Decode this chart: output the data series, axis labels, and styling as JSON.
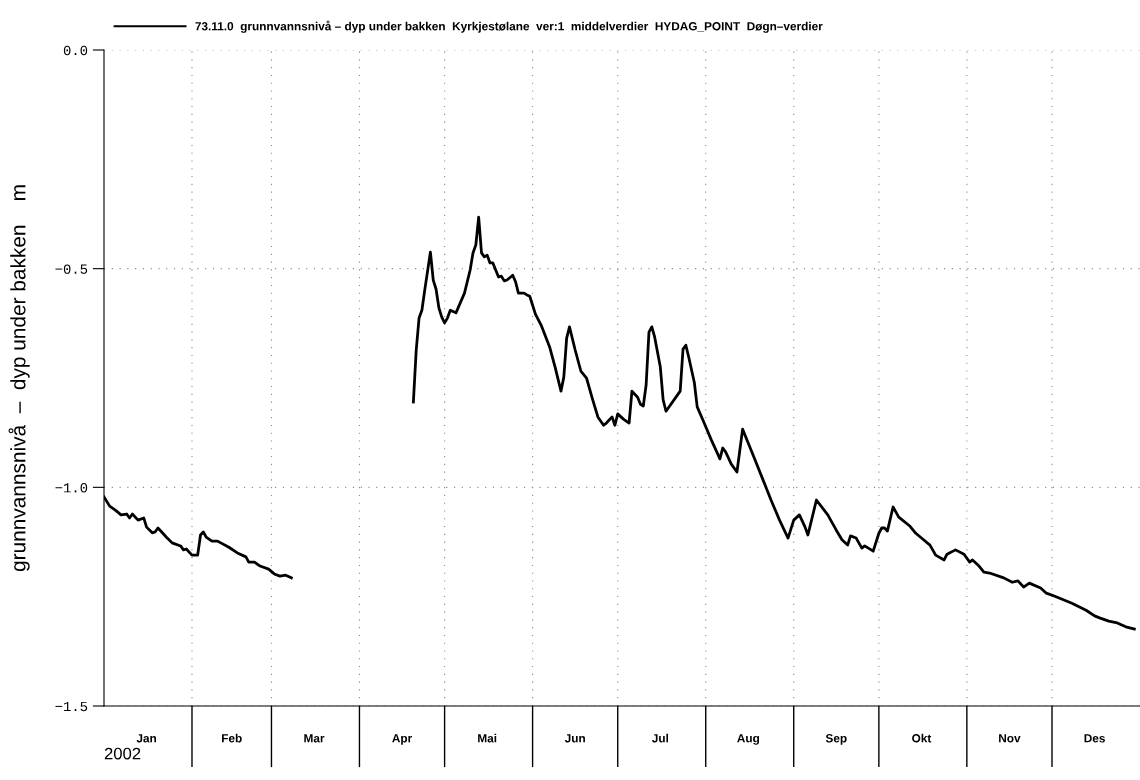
{
  "chart_data": {
    "type": "line",
    "series": [
      {
        "name": "73.11.0  grunnvannsnivå – dyp under bakken  Kyrkjestølane  ver:1  middelverdier  HYDAG_POINT  Døgn–verdier",
        "color": "#000000",
        "x": [
          "2002-01-01",
          "2002-01-03",
          "2002-01-05",
          "2002-01-07",
          "2002-01-09",
          "2002-01-10",
          "2002-01-11",
          "2002-01-13",
          "2002-01-15",
          "2002-01-16",
          "2002-01-18",
          "2002-01-19",
          "2002-01-20",
          "2002-01-21",
          "2002-01-23",
          "2002-01-25",
          "2002-01-28",
          "2002-01-29",
          "2002-01-30",
          "2002-02-01",
          "2002-02-03",
          "2002-02-04",
          "2002-02-05",
          "2002-02-06",
          "2002-02-08",
          "2002-02-10",
          "2002-02-14",
          "2002-02-17",
          "2002-02-20",
          "2002-02-21",
          "2002-02-23",
          "2002-02-25",
          "2002-02-28",
          "2002-03-02",
          "2002-03-04",
          "2002-03-06",
          "2002-03-08",
          "2002-03-20",
          "2002-04-20",
          "2002-04-21",
          "2002-04-22",
          "2002-04-23",
          "2002-04-24",
          "2002-04-26",
          "2002-04-27",
          "2002-04-28",
          "2002-04-29",
          "2002-04-30",
          "2002-05-01",
          "2002-05-02",
          "2002-05-03",
          "2002-05-05",
          "2002-05-08",
          "2002-05-10",
          "2002-05-11",
          "2002-05-12",
          "2002-05-13",
          "2002-05-14",
          "2002-05-15",
          "2002-05-16",
          "2002-05-17",
          "2002-05-18",
          "2002-05-20",
          "2002-05-21",
          "2002-05-22",
          "2002-05-23",
          "2002-05-25",
          "2002-05-26",
          "2002-05-27",
          "2002-05-29",
          "2002-05-30",
          "2002-05-31",
          "2002-06-02",
          "2002-06-04",
          "2002-06-07",
          "2002-06-09",
          "2002-06-11",
          "2002-06-12",
          "2002-06-13",
          "2002-06-14",
          "2002-06-16",
          "2002-06-18",
          "2002-06-20",
          "2002-06-22",
          "2002-06-24",
          "2002-06-26",
          "2002-06-27",
          "2002-06-29",
          "2002-06-30",
          "2002-07-01",
          "2002-07-03",
          "2002-07-05",
          "2002-07-06",
          "2002-07-08",
          "2002-07-09",
          "2002-07-10",
          "2002-07-11",
          "2002-07-12",
          "2002-07-13",
          "2002-07-14",
          "2002-07-16",
          "2002-07-17",
          "2002-07-18",
          "2002-07-23",
          "2002-07-24",
          "2002-07-25",
          "2002-07-26",
          "2002-07-28",
          "2002-07-29",
          "2002-07-31",
          "2002-08-03",
          "2002-08-06",
          "2002-08-07",
          "2002-08-08",
          "2002-08-10",
          "2002-08-12",
          "2002-08-14",
          "2002-08-18",
          "2002-08-24",
          "2002-08-27",
          "2002-08-30",
          "2002-09-01",
          "2002-09-03",
          "2002-09-05",
          "2002-09-06",
          "2002-09-09",
          "2002-09-13",
          "2002-09-16",
          "2002-09-18",
          "2002-09-20",
          "2002-09-21",
          "2002-09-23",
          "2002-09-25",
          "2002-09-26",
          "2002-09-29",
          "2002-10-01",
          "2002-10-02",
          "2002-10-03",
          "2002-10-04",
          "2002-10-06",
          "2002-10-08",
          "2002-10-12",
          "2002-10-14",
          "2002-10-16",
          "2002-10-19",
          "2002-10-21",
          "2002-10-24",
          "2002-10-25",
          "2002-10-28",
          "2002-10-31",
          "2002-11-02",
          "2002-11-03",
          "2002-11-05",
          "2002-11-07",
          "2002-11-09",
          "2002-11-14",
          "2002-11-17",
          "2002-11-19",
          "2002-11-21",
          "2002-11-23",
          "2002-11-27",
          "2002-11-29",
          "2002-12-02",
          "2002-12-08",
          "2002-12-13",
          "2002-12-16",
          "2002-12-18",
          "2002-12-21",
          "2002-12-24",
          "2002-12-27",
          "2002-12-30"
        ],
        "values": [
          -1.022,
          -1.043,
          -1.052,
          -1.063,
          -1.061,
          -1.07,
          -1.061,
          -1.075,
          -1.07,
          -1.091,
          -1.104,
          -1.102,
          -1.093,
          -1.1,
          -1.114,
          -1.127,
          -1.134,
          -1.143,
          -1.141,
          -1.155,
          -1.155,
          -1.109,
          -1.102,
          -1.114,
          -1.123,
          -1.123,
          -1.137,
          -1.15,
          -1.159,
          -1.171,
          -1.171,
          -1.18,
          -1.187,
          -1.198,
          -1.203,
          -1.201,
          -1.207,
          null,
          -0.805,
          -0.686,
          -0.613,
          -0.595,
          -0.549,
          -0.462,
          -0.526,
          -0.547,
          -0.59,
          -0.611,
          -0.624,
          -0.613,
          -0.595,
          -0.601,
          -0.556,
          -0.503,
          -0.464,
          -0.446,
          -0.382,
          -0.464,
          -0.473,
          -0.469,
          -0.487,
          -0.487,
          -0.519,
          -0.517,
          -0.528,
          -0.526,
          -0.515,
          -0.53,
          -0.556,
          -0.556,
          -0.56,
          -0.563,
          -0.604,
          -0.629,
          -0.679,
          -0.727,
          -0.78,
          -0.748,
          -0.659,
          -0.633,
          -0.686,
          -0.734,
          -0.75,
          -0.796,
          -0.839,
          -0.858,
          -0.853,
          -0.839,
          -0.858,
          -0.832,
          -0.844,
          -0.853,
          -0.78,
          -0.794,
          -0.81,
          -0.814,
          -0.766,
          -0.645,
          -0.633,
          -0.656,
          -0.725,
          -0.8,
          -0.826,
          -0.78,
          -0.684,
          -0.675,
          -0.702,
          -0.761,
          -0.816,
          -0.846,
          -0.892,
          -0.935,
          -0.91,
          -0.919,
          -0.947,
          -0.965,
          -0.867,
          -0.931,
          -1.029,
          -1.075,
          -1.116,
          -1.075,
          -1.063,
          -1.091,
          -1.109,
          -1.029,
          -1.063,
          -1.098,
          -1.12,
          -1.132,
          -1.111,
          -1.116,
          -1.139,
          -1.134,
          -1.146,
          -1.105,
          -1.093,
          -1.093,
          -1.1,
          -1.045,
          -1.068,
          -1.089,
          -1.105,
          -1.116,
          -1.132,
          -1.155,
          -1.166,
          -1.153,
          -1.143,
          -1.153,
          -1.171,
          -1.166,
          -1.178,
          -1.194,
          -1.196,
          -1.207,
          -1.217,
          -1.214,
          -1.228,
          -1.219,
          -1.23,
          -1.242,
          -1.249,
          -1.265,
          -1.281,
          -1.294,
          -1.299,
          -1.306,
          -1.31,
          -1.319,
          -1.324
        ]
      }
    ],
    "ylabel": "grunnvannsnivå  –  dyp under bakken    m",
    "annotations": [
      "2002"
    ],
    "xlim": [
      "2002-01-01",
      "2003-01-01"
    ],
    "xticks": [
      {
        "value": "2002-02-01",
        "label": null
      },
      {
        "value": "2002-03-01",
        "label": null
      },
      {
        "value": "2002-04-01",
        "label": null
      },
      {
        "value": "2002-05-01",
        "label": null
      },
      {
        "value": "2002-06-01",
        "label": null
      },
      {
        "value": "2002-07-01",
        "label": null
      },
      {
        "value": "2002-08-01",
        "label": null
      },
      {
        "value": "2002-09-01",
        "label": null
      },
      {
        "value": "2002-10-01",
        "label": null
      },
      {
        "value": "2002-11-01",
        "label": null
      },
      {
        "value": "2002-12-01",
        "label": null
      },
      {
        "value": "2002-01-16",
        "label": "Jan"
      },
      {
        "value": "2002-02-15",
        "label": "Feb"
      },
      {
        "value": "2002-03-16",
        "label": "Mar"
      },
      {
        "value": "2002-04-16",
        "label": "Apr"
      },
      {
        "value": "2002-05-16",
        "label": "Mai"
      },
      {
        "value": "2002-06-16",
        "label": "Jun"
      },
      {
        "value": "2002-07-16",
        "label": "Jul"
      },
      {
        "value": "2002-08-16",
        "label": "Aug"
      },
      {
        "value": "2002-09-16",
        "label": "Sep"
      },
      {
        "value": "2002-10-16",
        "label": "Okt"
      },
      {
        "value": "2002-11-16",
        "label": "Nov"
      },
      {
        "value": "2002-12-16",
        "label": "Des"
      }
    ],
    "ylim": [
      -1.5,
      0
    ],
    "yticks": [
      {
        "value": 0,
        "label": "0.0"
      },
      {
        "value": -0.5,
        "label": "−0.5"
      },
      {
        "value": -1.0,
        "label": "−1.0"
      },
      {
        "value": -1.5,
        "label": "−1.5"
      }
    ],
    "grid": true,
    "legend": "top left",
    "line_style": "solid",
    "marker": "none"
  }
}
